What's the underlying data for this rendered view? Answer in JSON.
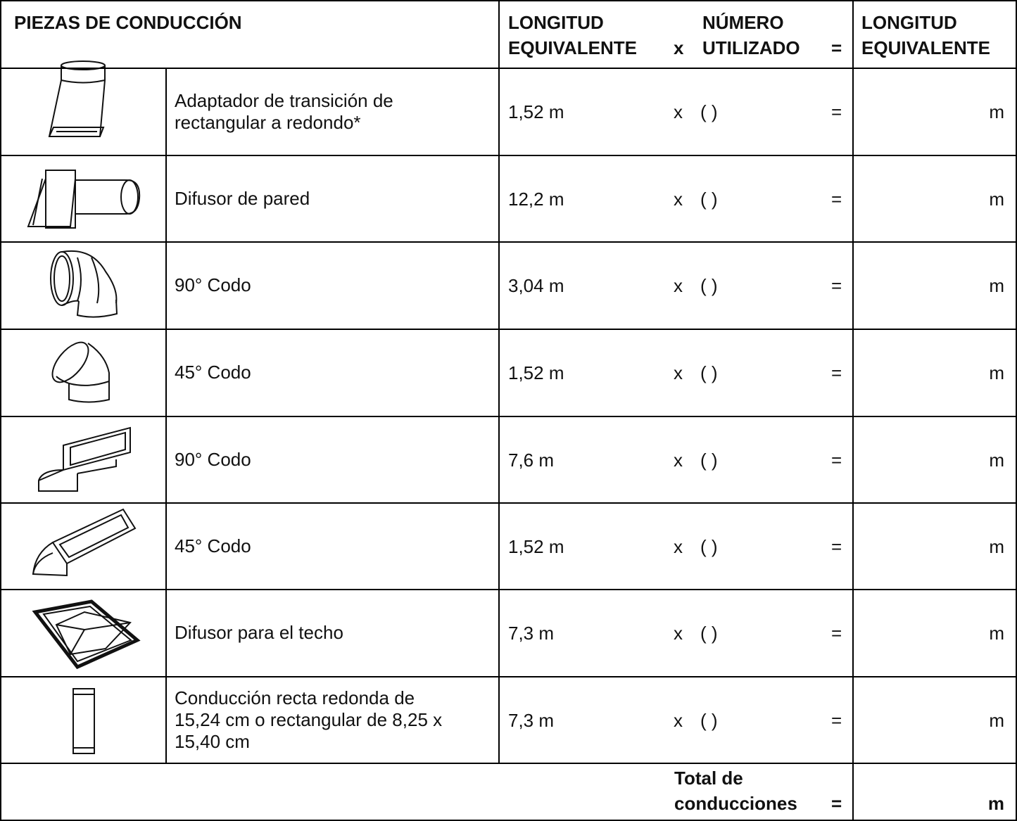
{
  "header": {
    "piece": "PIEZAS DE CONDUCCIÓN",
    "length": [
      "LONGITUD",
      "EQUIVALENTE"
    ],
    "times": "x",
    "number": [
      "NÚMERO",
      "UTILIZADO"
    ],
    "equals": "=",
    "result": [
      "LONGITUD",
      "EQUIVALENTE"
    ]
  },
  "rows": [
    {
      "description": [
        "Adaptador de transición de",
        "rectangular a redondo*"
      ],
      "length": "1,52 m",
      "times": "x",
      "count": "( )",
      "equals": "=",
      "unit": "m"
    },
    {
      "description": [
        "Difusor de pared"
      ],
      "length": "12,2 m",
      "times": "x",
      "count": "( )",
      "equals": "=",
      "unit": "m"
    },
    {
      "description": [
        "90° Codo"
      ],
      "length": "3,04 m",
      "times": "x",
      "count": "( )",
      "equals": "=",
      "unit": "m"
    },
    {
      "description": [
        "45° Codo"
      ],
      "length": "1,52 m",
      "times": "x",
      "count": "( )",
      "equals": "=",
      "unit": "m"
    },
    {
      "description": [
        "90° Codo"
      ],
      "length": "7,6 m",
      "times": "x",
      "count": "( )",
      "equals": "=",
      "unit": "m"
    },
    {
      "description": [
        "45° Codo"
      ],
      "length": "1,52 m",
      "times": "x",
      "count": "( )",
      "equals": "=",
      "unit": "m"
    },
    {
      "description": [
        "Difusor para el techo"
      ],
      "length": "7,3 m",
      "times": "x",
      "count": "( )",
      "equals": "=",
      "unit": "m"
    },
    {
      "description": [
        "Conducción recta redonda de",
        "15,24 cm o rectangular de 8,25 x",
        "15,40 cm"
      ],
      "length": "7,3 m",
      "times": "x",
      "count": "( )",
      "equals": "=",
      "unit": "m"
    }
  ],
  "total": {
    "label": [
      "Total de",
      "conducciones"
    ],
    "equals": "=",
    "unit": "m"
  }
}
